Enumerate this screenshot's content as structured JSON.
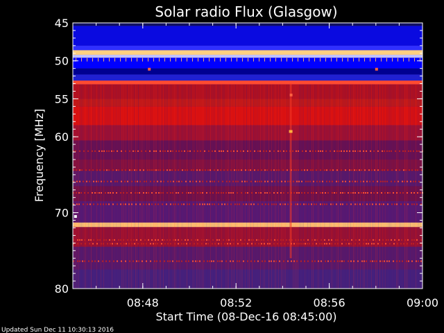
{
  "chart_data": {
    "type": "heatmap",
    "title": "Solar radio Flux (Glasgow)",
    "xlabel": "Start Time (08-Dec-16 08:45:00)",
    "ylabel": "Frequency [MHz]",
    "x_range": [
      "08:45:00",
      "09:00:00"
    ],
    "y_range": [
      45,
      80
    ],
    "y_inverted": true,
    "x_ticks": [
      "08:48",
      "08:52",
      "08:56",
      "09:00"
    ],
    "y_ticks": [
      45,
      50,
      55,
      60,
      70,
      80
    ],
    "colormap": [
      "#3a1f8c",
      "#0000ff",
      "#7a0a3a",
      "#d01010",
      "#ff3020",
      "#ffb060",
      "#ffff88"
    ],
    "bands": [
      {
        "from": 45.0,
        "to": 45.4,
        "color": "#101060"
      },
      {
        "from": 45.4,
        "to": 48.0,
        "color": "#0a0ae0"
      },
      {
        "from": 48.0,
        "to": 48.6,
        "color": "#3030ff"
      },
      {
        "from": 48.6,
        "to": 49.2,
        "color": "#ffd080"
      },
      {
        "from": 49.2,
        "to": 49.6,
        "color": "#c0c0ff"
      },
      {
        "from": 49.6,
        "to": 51.0,
        "color": "#0000ff"
      },
      {
        "from": 51.0,
        "to": 51.8,
        "color": "#000090"
      },
      {
        "from": 51.8,
        "to": 52.6,
        "color": "#2020d0"
      },
      {
        "from": 52.6,
        "to": 53.1,
        "color": "#ff4a30"
      },
      {
        "from": 53.1,
        "to": 55.0,
        "color": "#b01020"
      },
      {
        "from": 55.0,
        "to": 56.0,
        "color": "#c01818"
      },
      {
        "from": 56.0,
        "to": 58.5,
        "color": "#d81010"
      },
      {
        "from": 58.5,
        "to": 60.5,
        "color": "#a01030"
      },
      {
        "from": 60.5,
        "to": 63.0,
        "color": "#6a1050"
      },
      {
        "from": 63.0,
        "to": 64.5,
        "color": "#801040"
      },
      {
        "from": 64.5,
        "to": 66.5,
        "color": "#5a1868"
      },
      {
        "from": 66.5,
        "to": 68.5,
        "color": "#701048"
      },
      {
        "from": 68.5,
        "to": 71.3,
        "color": "#5a1870"
      },
      {
        "from": 71.3,
        "to": 71.9,
        "color": "#ffc070"
      },
      {
        "from": 71.9,
        "to": 74.5,
        "color": "#9a1030"
      },
      {
        "from": 74.5,
        "to": 77.5,
        "color": "#5a1868"
      },
      {
        "from": 77.5,
        "to": 80.0,
        "color": "#48207a"
      }
    ],
    "streak_rows": [
      61.8,
      64.3,
      65.8,
      67.3,
      68.8,
      73.5,
      74.0,
      76.3
    ],
    "tick_marks_row": 49.9,
    "burst": {
      "time": "08:54:20",
      "freq_from": 53.0,
      "freq_to": 76.0,
      "peak_freq": 59.3
    },
    "spots": [
      {
        "time": "08:48:15",
        "freq": 51.1
      },
      {
        "time": "08:58:00",
        "freq": 51.1
      },
      {
        "time": "08:45:05",
        "freq": 70.5
      },
      {
        "time": "08:54:20",
        "freq": 54.5
      }
    ]
  },
  "footer": {
    "updated_text": "Updated Sun Dec 11 10:30:13 2016"
  }
}
